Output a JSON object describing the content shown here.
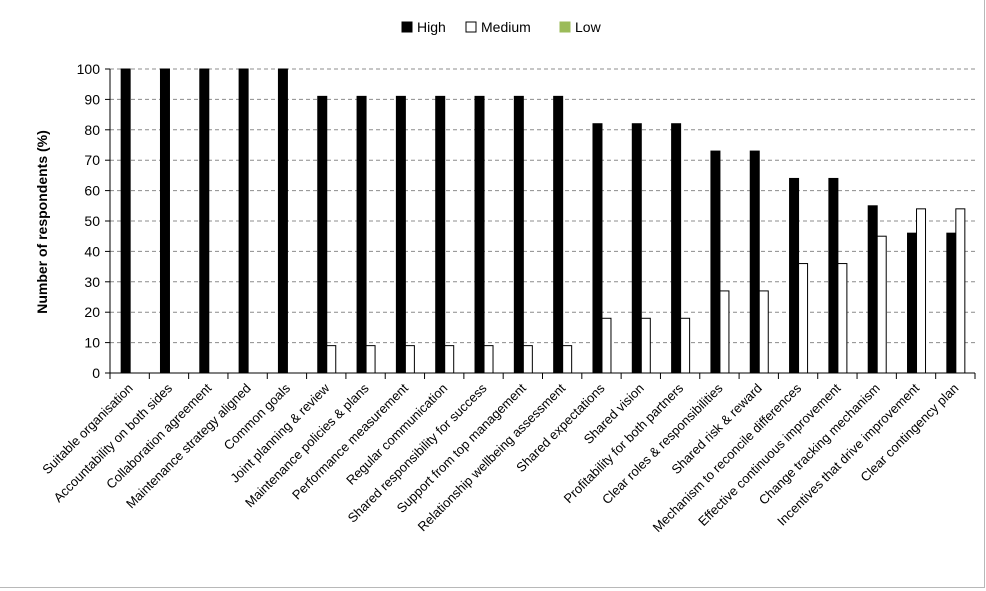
{
  "chart_data": {
    "type": "bar",
    "title": "",
    "xlabel": "",
    "ylabel": "Number of respondents (%)",
    "ylim": [
      0,
      100
    ],
    "yticks": [
      0,
      10,
      20,
      30,
      40,
      50,
      60,
      70,
      80,
      90,
      100
    ],
    "grid": true,
    "legend_position": "top-center",
    "categories": [
      "Suitable organisation",
      "Accountability on both sides",
      "Collaboration agreement",
      "Maintenance strategy aligned",
      "Common goals",
      "Joint planning & review",
      "Maintenance policies & plans",
      "Performance measurement",
      "Regular communication",
      "Shared responsibility for success",
      "Support from top management",
      "Relationship wellbeing assessment",
      "Shared expectations",
      "Shared vision",
      "Profitability for both partners",
      "Clear roles & responsibilities",
      "Shared risk & reward",
      "Mechanism to reconcile differences",
      "Effective continuous improvement",
      "Change tracking mechanism",
      "Incentives that drive improvement",
      "Clear contingency plan"
    ],
    "series": [
      {
        "name": "High",
        "color": "#000000",
        "values": [
          100,
          100,
          100,
          100,
          100,
          91,
          91,
          91,
          91,
          91,
          91,
          91,
          82,
          82,
          82,
          73,
          73,
          64,
          64,
          55,
          46,
          46
        ]
      },
      {
        "name": "Medium",
        "color": "#ffffff",
        "values": [
          0,
          0,
          0,
          0,
          0,
          9,
          9,
          9,
          9,
          9,
          9,
          9,
          18,
          18,
          18,
          27,
          27,
          36,
          36,
          45,
          54,
          54
        ]
      },
      {
        "name": "Low",
        "color": "#9bbb59",
        "values": [
          0,
          0,
          0,
          0,
          0,
          0,
          0,
          0,
          0,
          0,
          0,
          0,
          0,
          0,
          0,
          0,
          0,
          0,
          0,
          0,
          0,
          0
        ]
      }
    ]
  }
}
